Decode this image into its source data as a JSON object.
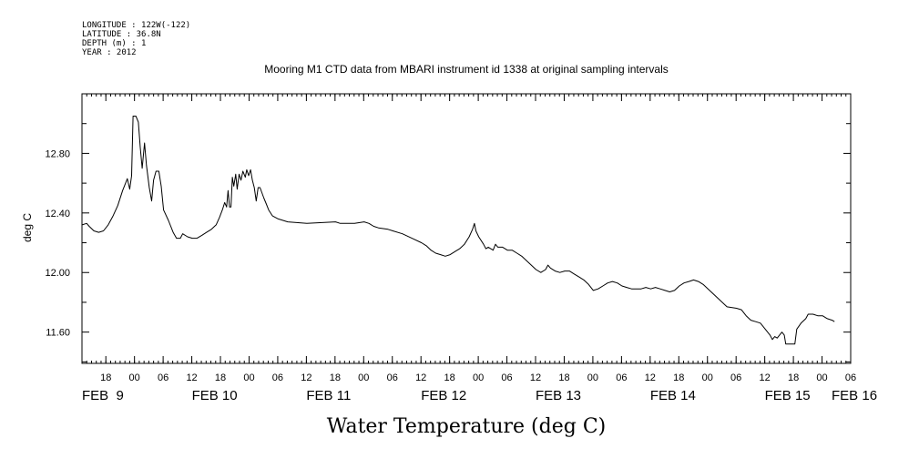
{
  "header": {
    "meta": [
      "LONGITUDE : 122W(-122)",
      "LATITUDE : 36.8N",
      "DEPTH (m) : 1",
      "YEAR : 2012"
    ],
    "title": "Mooring M1 CTD data from MBARI instrument id 1338 at original sampling intervals"
  },
  "chart_data": {
    "type": "line",
    "title": "Mooring M1 CTD data from MBARI instrument id 1338 at original sampling intervals",
    "xlabel": "Water Temperature (deg C)",
    "ylabel": "deg C",
    "x_unit": "hours since 2012-02-09 00:00",
    "xlim": [
      -11,
      150
    ],
    "ylim": [
      11.39,
      13.2
    ],
    "yticks": [
      11.6,
      12.0,
      12.4,
      12.8
    ],
    "ytick_labels": [
      "11.60",
      "12.00",
      "12.40",
      "12.80"
    ],
    "grid": false,
    "legend": "none",
    "hour_ticks": [
      {
        "h": -6,
        "label": "18"
      },
      {
        "h": 0,
        "label": "00"
      },
      {
        "h": 6,
        "label": "06"
      },
      {
        "h": 12,
        "label": "12"
      },
      {
        "h": 18,
        "label": "18"
      },
      {
        "h": 24,
        "label": "00"
      },
      {
        "h": 30,
        "label": "06"
      },
      {
        "h": 36,
        "label": "12"
      },
      {
        "h": 42,
        "label": "18"
      },
      {
        "h": 48,
        "label": "00"
      },
      {
        "h": 54,
        "label": "06"
      },
      {
        "h": 60,
        "label": "12"
      },
      {
        "h": 66,
        "label": "18"
      },
      {
        "h": 72,
        "label": "00"
      },
      {
        "h": 78,
        "label": "06"
      },
      {
        "h": 84,
        "label": "12"
      },
      {
        "h": 90,
        "label": "18"
      },
      {
        "h": 96,
        "label": "00"
      },
      {
        "h": 102,
        "label": "06"
      },
      {
        "h": 108,
        "label": "12"
      },
      {
        "h": 114,
        "label": "18"
      },
      {
        "h": 120,
        "label": "00"
      },
      {
        "h": 126,
        "label": "06"
      },
      {
        "h": 132,
        "label": "12"
      },
      {
        "h": 138,
        "label": "18"
      },
      {
        "h": 144,
        "label": "00"
      },
      {
        "h": 150,
        "label": "06"
      }
    ],
    "day_labels": [
      {
        "h": -11,
        "label": "FEB  9"
      },
      {
        "h": 12,
        "label": "FEB 10"
      },
      {
        "h": 36,
        "label": "FEB 11"
      },
      {
        "h": 60,
        "label": "FEB 12"
      },
      {
        "h": 84,
        "label": "FEB 13"
      },
      {
        "h": 108,
        "label": "FEB 14"
      },
      {
        "h": 132,
        "label": "FEB 15"
      },
      {
        "h": 146,
        "label": "FEB 16"
      }
    ],
    "series": [
      {
        "color": "#000000",
        "points": [
          [
            -11.0,
            12.32
          ],
          [
            -10.0,
            12.33
          ],
          [
            -9.5,
            12.31
          ],
          [
            -8.5,
            12.28
          ],
          [
            -7.5,
            12.27
          ],
          [
            -6.5,
            12.28
          ],
          [
            -5.5,
            12.32
          ],
          [
            -4.5,
            12.38
          ],
          [
            -3.5,
            12.45
          ],
          [
            -2.5,
            12.55
          ],
          [
            -1.5,
            12.63
          ],
          [
            -1.0,
            12.56
          ],
          [
            -0.6,
            12.65
          ],
          [
            -0.3,
            13.05
          ],
          [
            0.3,
            13.05
          ],
          [
            0.8,
            13.01
          ],
          [
            1.2,
            12.84
          ],
          [
            1.6,
            12.7
          ],
          [
            2.1,
            12.87
          ],
          [
            2.5,
            12.72
          ],
          [
            3.1,
            12.57
          ],
          [
            3.6,
            12.48
          ],
          [
            4.0,
            12.62
          ],
          [
            4.5,
            12.68
          ],
          [
            5.1,
            12.68
          ],
          [
            5.6,
            12.58
          ],
          [
            6.1,
            12.42
          ],
          [
            7.1,
            12.35
          ],
          [
            8.1,
            12.27
          ],
          [
            8.8,
            12.23
          ],
          [
            9.6,
            12.23
          ],
          [
            10.1,
            12.26
          ],
          [
            11.1,
            12.24
          ],
          [
            12.1,
            12.23
          ],
          [
            13.1,
            12.23
          ],
          [
            14.1,
            12.25
          ],
          [
            15.1,
            12.27
          ],
          [
            16.1,
            12.29
          ],
          [
            17.1,
            12.32
          ],
          [
            17.8,
            12.37
          ],
          [
            18.4,
            12.42
          ],
          [
            18.9,
            12.47
          ],
          [
            19.3,
            12.44
          ],
          [
            19.6,
            12.55
          ],
          [
            19.9,
            12.44
          ],
          [
            20.2,
            12.44
          ],
          [
            20.5,
            12.64
          ],
          [
            20.8,
            12.58
          ],
          [
            21.2,
            12.66
          ],
          [
            21.5,
            12.56
          ],
          [
            21.9,
            12.66
          ],
          [
            22.3,
            12.62
          ],
          [
            22.7,
            12.68
          ],
          [
            23.2,
            12.64
          ],
          [
            23.5,
            12.69
          ],
          [
            23.9,
            12.65
          ],
          [
            24.3,
            12.69
          ],
          [
            24.7,
            12.62
          ],
          [
            25.1,
            12.57
          ],
          [
            25.5,
            12.48
          ],
          [
            25.9,
            12.57
          ],
          [
            26.3,
            12.57
          ],
          [
            27.1,
            12.5
          ],
          [
            27.6,
            12.46
          ],
          [
            28.1,
            12.42
          ],
          [
            28.9,
            12.38
          ],
          [
            30.1,
            12.36
          ],
          [
            31.1,
            12.35
          ],
          [
            32.1,
            12.34
          ],
          [
            36.1,
            12.33
          ],
          [
            42.1,
            12.34
          ],
          [
            43.1,
            12.33
          ],
          [
            46.1,
            12.33
          ],
          [
            48.1,
            12.34
          ],
          [
            49.1,
            12.33
          ],
          [
            50.1,
            12.31
          ],
          [
            51.1,
            12.3
          ],
          [
            53.1,
            12.29
          ],
          [
            54.1,
            12.28
          ],
          [
            56.1,
            12.26
          ],
          [
            58.1,
            12.23
          ],
          [
            60.1,
            12.2
          ],
          [
            61.1,
            12.18
          ],
          [
            62.1,
            12.15
          ],
          [
            63.1,
            12.13
          ],
          [
            64.1,
            12.12
          ],
          [
            65.1,
            12.11
          ],
          [
            66.1,
            12.12
          ],
          [
            67.1,
            12.14
          ],
          [
            68.1,
            12.16
          ],
          [
            69.1,
            12.19
          ],
          [
            70.1,
            12.24
          ],
          [
            70.8,
            12.29
          ],
          [
            71.2,
            12.33
          ],
          [
            71.5,
            12.28
          ],
          [
            72.1,
            12.24
          ],
          [
            73.1,
            12.19
          ],
          [
            73.6,
            12.16
          ],
          [
            74.1,
            12.17
          ],
          [
            75.1,
            12.15
          ],
          [
            75.6,
            12.19
          ],
          [
            76.1,
            12.17
          ],
          [
            77.1,
            12.17
          ],
          [
            78.1,
            12.15
          ],
          [
            79.1,
            12.15
          ],
          [
            80.1,
            12.13
          ],
          [
            81.1,
            12.11
          ],
          [
            82.1,
            12.08
          ],
          [
            83.1,
            12.05
          ],
          [
            84.1,
            12.02
          ],
          [
            85.1,
            12.0
          ],
          [
            86.1,
            12.02
          ],
          [
            86.6,
            12.05
          ],
          [
            87.1,
            12.03
          ],
          [
            88.1,
            12.01
          ],
          [
            89.1,
            12.0
          ],
          [
            90.1,
            12.01
          ],
          [
            91.1,
            12.01
          ],
          [
            92.1,
            11.99
          ],
          [
            93.1,
            11.97
          ],
          [
            94.1,
            11.95
          ],
          [
            95.1,
            11.92
          ],
          [
            96.1,
            11.88
          ],
          [
            97.1,
            11.89
          ],
          [
            98.1,
            11.91
          ],
          [
            99.1,
            11.93
          ],
          [
            100.1,
            11.94
          ],
          [
            101.1,
            11.93
          ],
          [
            102.1,
            11.91
          ],
          [
            103.1,
            11.9
          ],
          [
            104.1,
            11.89
          ],
          [
            105.1,
            11.89
          ],
          [
            106.1,
            11.89
          ],
          [
            107.1,
            11.9
          ],
          [
            108.1,
            11.89
          ],
          [
            109.1,
            11.9
          ],
          [
            110.1,
            11.89
          ],
          [
            111.1,
            11.88
          ],
          [
            112.1,
            11.87
          ],
          [
            113.1,
            11.88
          ],
          [
            114.1,
            11.91
          ],
          [
            115.1,
            11.93
          ],
          [
            116.1,
            11.94
          ],
          [
            117.1,
            11.95
          ],
          [
            118.1,
            11.94
          ],
          [
            119.1,
            11.92
          ],
          [
            120.1,
            11.89
          ],
          [
            121.1,
            11.86
          ],
          [
            122.1,
            11.83
          ],
          [
            123.1,
            11.8
          ],
          [
            124.1,
            11.77
          ],
          [
            126.1,
            11.76
          ],
          [
            127.1,
            11.75
          ],
          [
            128.1,
            11.71
          ],
          [
            129.1,
            11.68
          ],
          [
            130.1,
            11.67
          ],
          [
            131.1,
            11.66
          ],
          [
            132.1,
            11.62
          ],
          [
            133.1,
            11.58
          ],
          [
            133.6,
            11.55
          ],
          [
            134.1,
            11.57
          ],
          [
            134.6,
            11.56
          ],
          [
            135.1,
            11.58
          ],
          [
            135.6,
            11.6
          ],
          [
            136.1,
            11.58
          ],
          [
            136.4,
            11.52
          ],
          [
            138.3,
            11.52
          ],
          [
            138.7,
            11.62
          ],
          [
            139.6,
            11.66
          ],
          [
            140.6,
            11.69
          ],
          [
            141.1,
            11.72
          ],
          [
            142.1,
            11.72
          ],
          [
            143.1,
            11.71
          ],
          [
            144.1,
            11.71
          ],
          [
            145.1,
            11.69
          ],
          [
            146.1,
            11.68
          ],
          [
            146.6,
            11.67
          ]
        ]
      }
    ]
  }
}
